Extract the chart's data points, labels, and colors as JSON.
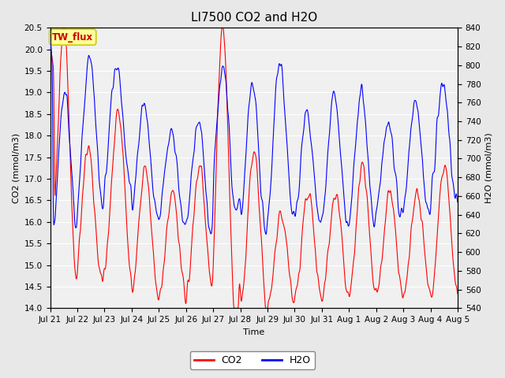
{
  "title": "LI7500 CO2 and H2O",
  "xlabel": "Time",
  "ylabel_left": "CO2 (mmol/m3)",
  "ylabel_right": "H2O (mmol/m3)",
  "ylim_left": [
    14.0,
    20.5
  ],
  "ylim_right": [
    540,
    840
  ],
  "yticks_left": [
    14.0,
    14.5,
    15.0,
    15.5,
    16.0,
    16.5,
    17.0,
    17.5,
    18.0,
    18.5,
    19.0,
    19.5,
    20.0,
    20.5
  ],
  "yticks_right": [
    540,
    560,
    580,
    600,
    620,
    640,
    660,
    680,
    700,
    720,
    740,
    760,
    780,
    800,
    820,
    840
  ],
  "xtick_labels": [
    "Jul 21",
    "Jul 22",
    "Jul 23",
    "Jul 24",
    "Jul 25",
    "Jul 26",
    "Jul 27",
    "Jul 28",
    "Jul 29",
    "Jul 30",
    "Jul 31",
    "Aug 1",
    "Aug 2",
    "Aug 3",
    "Aug 4",
    "Aug 5"
  ],
  "co2_color": "#ff0000",
  "h2o_color": "#0000ff",
  "line_width": 0.8,
  "bg_color": "#e8e8e8",
  "plot_bg_color": "#f0f0f0",
  "annotation_text": "TW_flux",
  "annotation_color": "#cc0000",
  "annotation_bg": "#ffff99",
  "annotation_border": "#cccc00",
  "legend_co2": "CO2",
  "legend_h2o": "H2O",
  "title_fontsize": 11,
  "label_fontsize": 8,
  "tick_fontsize": 7.5
}
